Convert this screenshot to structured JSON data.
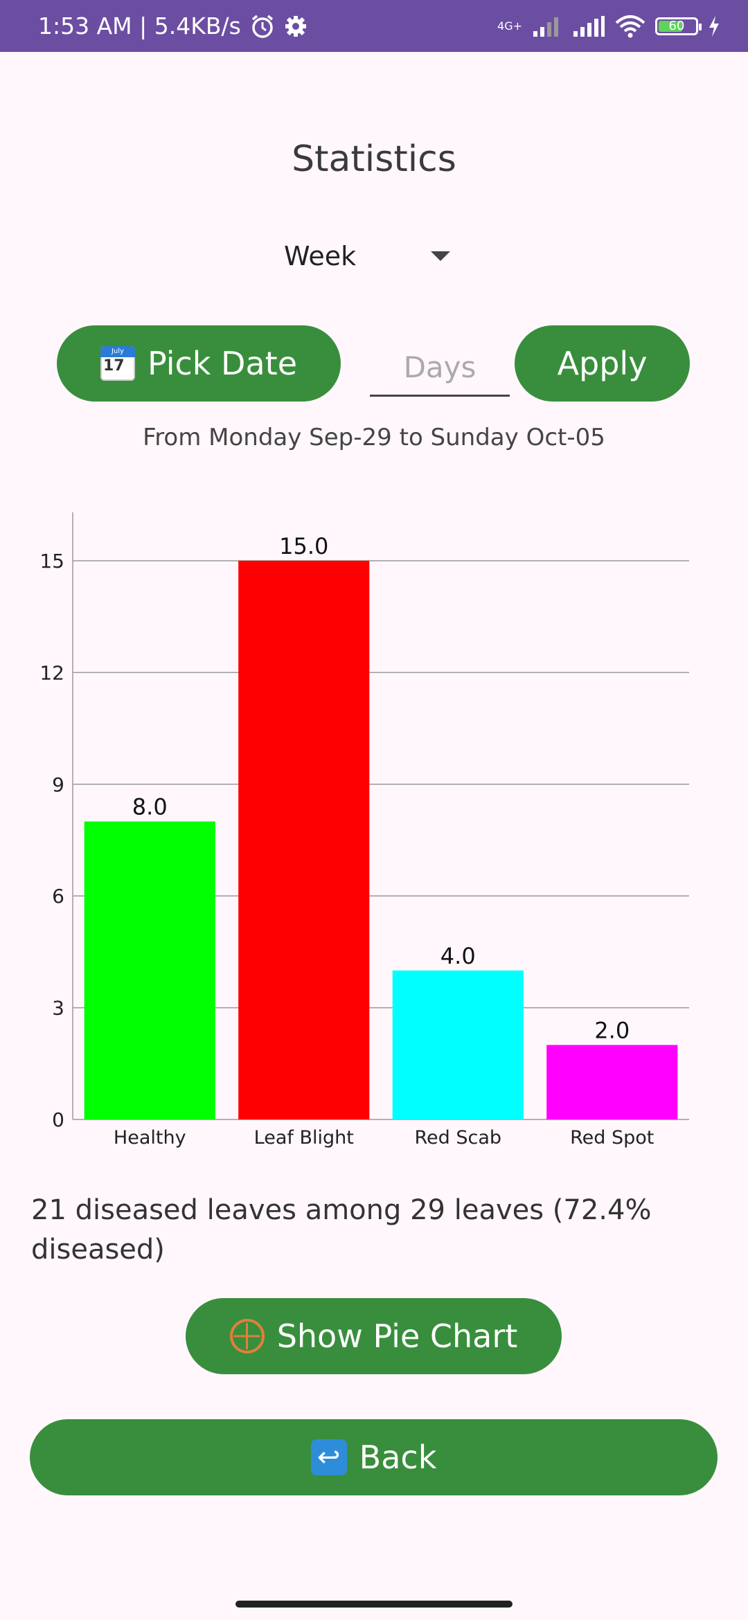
{
  "status_bar": {
    "time_speed": "1:53 AM | 5.4KB/s",
    "network": "4G+",
    "battery": "60"
  },
  "title": "Statistics",
  "period_select": {
    "value": "Week"
  },
  "pick_date_button": {
    "label": "Pick Date",
    "icon": "calendar-icon",
    "icon_month": "July",
    "icon_day": "17"
  },
  "days_input": {
    "placeholder": "Days",
    "value": ""
  },
  "apply_button": {
    "label": "Apply"
  },
  "date_range": "From Monday Sep-29 to Sunday Oct-05",
  "chart_data": {
    "type": "bar",
    "categories": [
      "Healthy",
      "Leaf Blight",
      "Red Scab",
      "Red Spot"
    ],
    "values": [
      8.0,
      15.0,
      4.0,
      2.0
    ],
    "value_labels": [
      "8.0",
      "15.0",
      "4.0",
      "2.0"
    ],
    "colors": [
      "#00FF00",
      "#FF0000",
      "#00FFFF",
      "#FF00FF"
    ],
    "yticks": [
      "0",
      "3",
      "6",
      "9",
      "12",
      "15"
    ],
    "ylim": [
      0,
      16.3
    ],
    "grid": true,
    "legend": "none"
  },
  "summary": "21 diseased leaves among 29 leaves (72.4% diseased)",
  "pie_button": {
    "label": "Show Pie Chart",
    "icon": "wheel-icon"
  },
  "back_button": {
    "label": "Back",
    "icon": "back-arrow-icon",
    "glyph": "↩"
  }
}
